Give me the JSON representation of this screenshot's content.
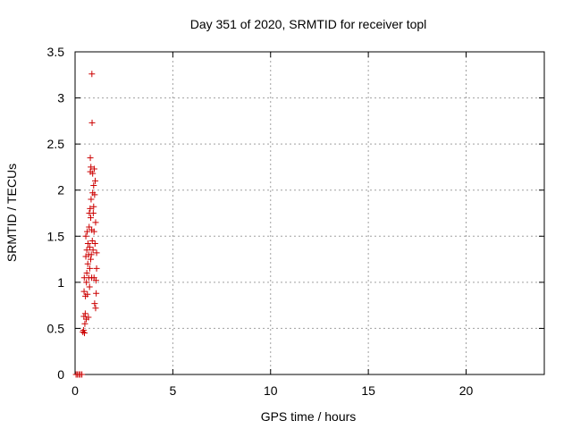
{
  "chart_data": {
    "type": "scatter",
    "title": "Day 351 of 2020, SRMTID for receiver topl",
    "xlabel": "GPS time / hours",
    "ylabel": "SRMTID / TECUs",
    "xlim": [
      0,
      24
    ],
    "ylim": [
      0,
      3.5
    ],
    "xticks": [
      0,
      5,
      10,
      15,
      20
    ],
    "yticks": [
      0,
      0.5,
      1,
      1.5,
      2,
      2.5,
      3,
      3.5
    ],
    "xtick_labels": [
      "0",
      "5",
      "10",
      "15",
      "20"
    ],
    "ytick_labels": [
      "0",
      "0.5",
      "1",
      "1.5",
      "2",
      "2.5",
      "3",
      "3.5"
    ],
    "grid": true,
    "marker": "plus",
    "color": "#cc0000",
    "points": [
      [
        0.05,
        0.0
      ],
      [
        0.12,
        0.0
      ],
      [
        0.2,
        0.0
      ],
      [
        0.27,
        0.0
      ],
      [
        0.35,
        0.0
      ],
      [
        0.4,
        0.46
      ],
      [
        0.43,
        0.48
      ],
      [
        0.45,
        0.63
      ],
      [
        0.46,
        0.9
      ],
      [
        0.47,
        1.05
      ],
      [
        0.48,
        0.45
      ],
      [
        0.5,
        0.55
      ],
      [
        0.52,
        0.66
      ],
      [
        0.53,
        0.85
      ],
      [
        0.55,
        1.28
      ],
      [
        0.55,
        1.5
      ],
      [
        0.57,
        0.6
      ],
      [
        0.58,
        1.0
      ],
      [
        0.6,
        1.1
      ],
      [
        0.6,
        1.35
      ],
      [
        0.62,
        1.55
      ],
      [
        0.63,
        0.87
      ],
      [
        0.65,
        1.2
      ],
      [
        0.66,
        1.42
      ],
      [
        0.68,
        0.62
      ],
      [
        0.7,
        1.05
      ],
      [
        0.7,
        1.3
      ],
      [
        0.72,
        1.6
      ],
      [
        0.73,
        1.75
      ],
      [
        0.74,
        0.95
      ],
      [
        0.75,
        1.15
      ],
      [
        0.75,
        1.38
      ],
      [
        0.77,
        1.8
      ],
      [
        0.78,
        2.2
      ],
      [
        0.78,
        2.35
      ],
      [
        0.8,
        1.25
      ],
      [
        0.8,
        1.7
      ],
      [
        0.81,
        2.25
      ],
      [
        0.82,
        1.9
      ],
      [
        0.83,
        1.3
      ],
      [
        0.85,
        1.05
      ],
      [
        0.85,
        1.57
      ],
      [
        0.86,
        3.26
      ],
      [
        0.87,
        2.73
      ],
      [
        0.88,
        1.45
      ],
      [
        0.9,
        2.18
      ],
      [
        0.9,
        1.97
      ],
      [
        0.92,
        1.35
      ],
      [
        0.93,
        1.75
      ],
      [
        0.95,
        2.05
      ],
      [
        0.95,
        1.82
      ],
      [
        0.97,
        1.05
      ],
      [
        0.97,
        1.55
      ],
      [
        0.98,
        2.23
      ],
      [
        1.0,
        1.95
      ],
      [
        1.0,
        0.77
      ],
      [
        1.02,
        1.42
      ],
      [
        1.03,
        2.1
      ],
      [
        1.05,
        1.65
      ],
      [
        1.05,
        0.72
      ],
      [
        1.07,
        1.02
      ],
      [
        1.08,
        0.88
      ],
      [
        1.1,
        1.32
      ],
      [
        1.1,
        1.15
      ]
    ]
  }
}
